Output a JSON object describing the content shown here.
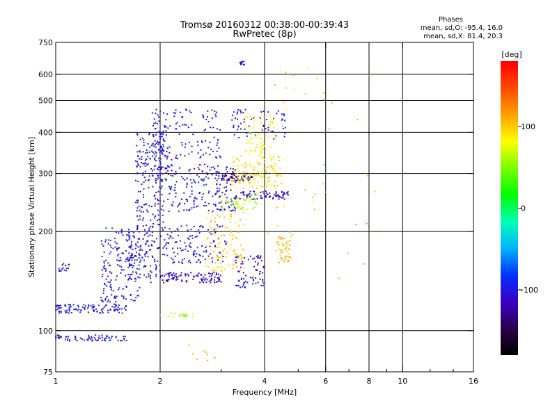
{
  "chart_data": {
    "type": "scatter",
    "title": "Tromsø 20160312 00:38:00-00:39:43",
    "subtitle": "RwPretec (8p)",
    "xlabel": "Frequency [MHz]",
    "ylabel": "Stationary phase Virtual Height [km]",
    "x_scale": "log",
    "y_scale": "log",
    "xlim": [
      1,
      16
    ],
    "ylim": [
      75,
      750
    ],
    "x_ticks": [
      1,
      2,
      4,
      6,
      8,
      10,
      16
    ],
    "y_ticks": [
      75,
      100,
      200,
      300,
      400,
      500,
      600,
      750
    ],
    "grid_x": [
      2,
      4,
      6,
      8,
      10
    ],
    "grid_y": [
      100,
      200,
      300,
      400,
      500,
      600
    ],
    "colorbar": {
      "label": "[deg]",
      "range": [
        -180,
        180
      ],
      "ticks": [
        100,
        0,
        -100
      ],
      "colors": [
        "#000000",
        "#2a004a",
        "#3a00c8",
        "#0032ff",
        "#00b4ff",
        "#00ffb4",
        "#00ff00",
        "#78ff00",
        "#ffff00",
        "#ffa000",
        "#ff4800",
        "#ff0000"
      ]
    },
    "stats": {
      "heading": "Phases",
      "line_o": "mean, sd,O: -95.4, 16.0",
      "line_x": "mean, sd,X:  81.4, 20.3"
    },
    "clusters": [
      {
        "x": [
          1.0,
          1.1
        ],
        "y": [
          113,
          120
        ],
        "phase": -100,
        "n": 30
      },
      {
        "x": [
          1.1,
          1.6
        ],
        "y": [
          113,
          120
        ],
        "phase": -100,
        "n": 70
      },
      {
        "x": [
          1.0,
          1.6
        ],
        "y": [
          93,
          97
        ],
        "phase": -100,
        "n": 70
      },
      {
        "x": [
          1.02,
          1.1
        ],
        "y": [
          150,
          160
        ],
        "phase": -100,
        "n": 15
      },
      {
        "x": [
          1.35,
          1.75
        ],
        "y": [
          120,
          205
        ],
        "phase": -100,
        "n": 160
      },
      {
        "x": [
          1.6,
          2.0
        ],
        "y": [
          140,
          200
        ],
        "phase": -100,
        "n": 120
      },
      {
        "x": [
          1.7,
          2.05
        ],
        "y": [
          200,
          400
        ],
        "phase": -100,
        "n": 180
      },
      {
        "x": [
          1.9,
          2.1
        ],
        "y": [
          280,
          470
        ],
        "phase": -100,
        "n": 90
      },
      {
        "x": [
          2.0,
          3.0
        ],
        "y": [
          140,
          150
        ],
        "phase": -110,
        "n": 100
      },
      {
        "x": [
          2.0,
          3.1
        ],
        "y": [
          160,
          210
        ],
        "phase": -100,
        "n": 130
      },
      {
        "x": [
          2.1,
          3.3
        ],
        "y": [
          230,
          320
        ],
        "phase": -100,
        "n": 200
      },
      {
        "x": [
          2.1,
          3.0
        ],
        "y": [
          330,
          470
        ],
        "phase": -100,
        "n": 90
      },
      {
        "x": [
          3.0,
          3.7
        ],
        "y": [
          285,
          300
        ],
        "phase": -130,
        "n": 60
      },
      {
        "x": [
          3.3,
          4.7
        ],
        "y": [
          250,
          265
        ],
        "phase": -110,
        "n": 80
      },
      {
        "x": [
          3.3,
          4.0
        ],
        "y": [
          135,
          170
        ],
        "phase": -105,
        "n": 70
      },
      {
        "x": [
          3.2,
          4.6
        ],
        "y": [
          380,
          470
        ],
        "phase": -100,
        "n": 60
      },
      {
        "x": [
          3.4,
          3.5
        ],
        "y": [
          640,
          660
        ],
        "phase": -100,
        "n": 12
      },
      {
        "x": [
          2.7,
          3.5
        ],
        "y": [
          150,
          230
        ],
        "phase": 100,
        "n": 110
      },
      {
        "x": [
          3.2,
          4.5
        ],
        "y": [
          270,
          340
        ],
        "phase": 95,
        "n": 130
      },
      {
        "x": [
          3.5,
          4.3
        ],
        "y": [
          340,
          450
        ],
        "phase": 80,
        "n": 70
      },
      {
        "x": [
          4.3,
          4.8
        ],
        "y": [
          160,
          200
        ],
        "phase": 105,
        "n": 50
      },
      {
        "x": [
          3.0,
          3.8
        ],
        "y": [
          230,
          260
        ],
        "phase": 60,
        "n": 50
      },
      {
        "x": [
          2.0,
          2.5
        ],
        "y": [
          110,
          113
        ],
        "phase": 60,
        "n": 20
      },
      {
        "x": [
          2.3,
          2.9
        ],
        "y": [
          80,
          92
        ],
        "phase": 110,
        "n": 8
      },
      {
        "x": [
          4.0,
          6.0
        ],
        "y": [
          180,
          640
        ],
        "phase": 100,
        "n": 25
      },
      {
        "x": [
          5.8,
          8.6
        ],
        "y": [
          100,
          650
        ],
        "phase": 40,
        "n": 15
      }
    ]
  }
}
